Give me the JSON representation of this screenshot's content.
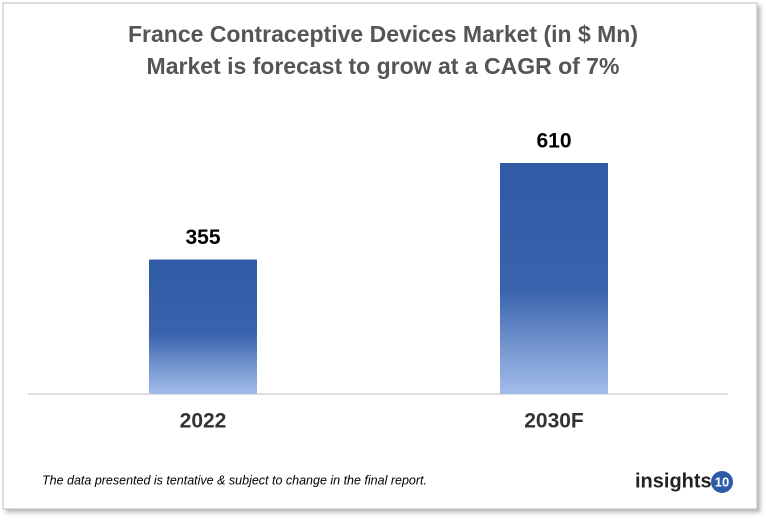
{
  "chart_data": {
    "type": "bar",
    "title": "France Contraceptive Devices Market (in $ Mn)",
    "subtitle": "Market is forecast to grow at a CAGR of 7%",
    "categories": [
      "2022",
      "2030F"
    ],
    "values": [
      355,
      610
    ],
    "color": "#2f5aa6"
  },
  "footnote": "The data presented is tentative & subject to change in the final report.",
  "logo": {
    "text": "insights",
    "badge": "10"
  }
}
